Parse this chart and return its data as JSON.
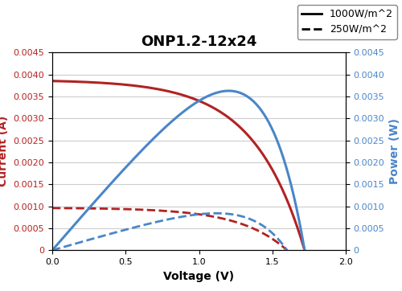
{
  "title": "ONP1.2-12x24",
  "xlabel": "Voltage (V)",
  "ylabel_left": "Current (A)",
  "ylabel_right": "Power (W)",
  "xlim": [
    0,
    2
  ],
  "ylim": [
    0,
    0.0045
  ],
  "legend": [
    "1000W/m^2",
    "250W/m^2"
  ],
  "color_iv_full": "#b22222",
  "color_iv_quarter": "#b22222",
  "color_pw_full": "#4a86c8",
  "color_pw_quarter": "#4a86c8",
  "Isc_full": 0.00385,
  "Isc_quarter": 0.00096,
  "Voc_full": 1.72,
  "Voc_quarter": 1.6,
  "Vmp_full": 1.3,
  "Vmp_quarter": 1.2,
  "Imp_full": 0.0037,
  "Imp_quarter": 0.000875,
  "title_fontsize": 13,
  "axis_label_fontsize": 10,
  "tick_fontsize": 8,
  "legend_fontsize": 9
}
